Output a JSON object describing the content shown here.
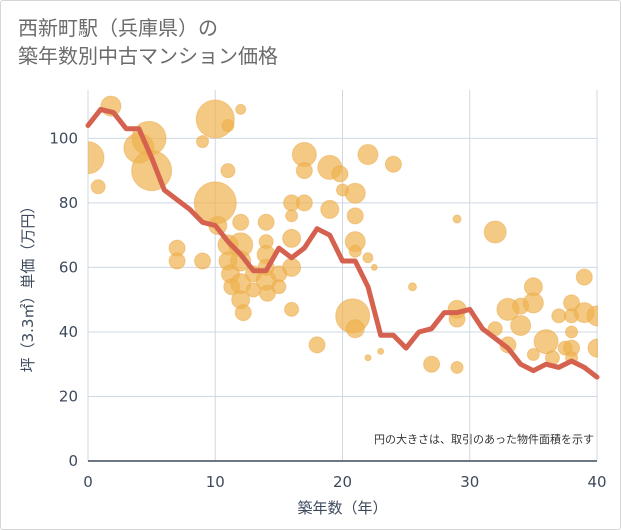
{
  "title_line1": "西新町駅（兵庫県）の",
  "title_line2": "築年数別中古マンション価格",
  "chart_data": {
    "type": "scatter",
    "title": "西新町駅（兵庫県）の築年数別中古マンション価格",
    "xlabel": "築年数（年）",
    "ylabel": "坪（3.3㎡）単価（万円）",
    "xlim": [
      0,
      40
    ],
    "ylim": [
      0,
      115
    ],
    "x_ticks": [
      0,
      10,
      20,
      30,
      40
    ],
    "y_ticks": [
      0,
      20,
      40,
      60,
      80,
      100
    ],
    "grid": true,
    "annotation": "円の大きさは、取引のあった物件面積を示す",
    "colors": {
      "bubble": "#f0b24e",
      "line": "#d5624f",
      "grid": "#cfd8e3",
      "axis": "#3d4a5c"
    },
    "series": [
      {
        "type": "bubble",
        "points": [
          [
            0,
            94,
            16
          ],
          [
            0.8,
            85,
            7
          ],
          [
            1.8,
            110,
            10
          ],
          [
            4,
            97,
            15
          ],
          [
            4.8,
            100,
            17
          ],
          [
            5,
            90,
            20
          ],
          [
            7,
            66,
            8
          ],
          [
            7,
            62,
            8
          ],
          [
            9,
            99,
            6
          ],
          [
            9,
            62,
            8
          ],
          [
            10,
            106,
            19
          ],
          [
            10,
            80,
            21
          ],
          [
            10.2,
            73,
            9
          ],
          [
            11,
            104,
            6
          ],
          [
            11,
            90,
            7
          ],
          [
            11,
            67,
            10
          ],
          [
            11,
            62,
            9
          ],
          [
            11.2,
            58,
            9
          ],
          [
            11.3,
            54,
            8
          ],
          [
            12,
            109,
            5
          ],
          [
            12,
            74,
            8
          ],
          [
            12,
            67,
            12
          ],
          [
            12,
            62,
            10
          ],
          [
            12,
            55,
            10
          ],
          [
            12,
            50,
            9
          ],
          [
            12.2,
            46,
            8
          ],
          [
            13,
            58,
            8
          ],
          [
            13,
            53,
            7
          ],
          [
            14,
            74,
            8
          ],
          [
            14,
            68,
            7
          ],
          [
            14,
            64,
            9
          ],
          [
            14,
            60,
            8
          ],
          [
            14,
            56,
            10
          ],
          [
            14.1,
            52,
            8
          ],
          [
            15,
            58,
            8
          ],
          [
            15,
            54,
            7
          ],
          [
            16,
            80,
            8
          ],
          [
            16,
            76,
            6
          ],
          [
            16,
            69,
            9
          ],
          [
            16,
            60,
            9
          ],
          [
            16,
            47,
            7
          ],
          [
            17,
            95,
            12
          ],
          [
            17,
            90,
            8
          ],
          [
            17,
            80,
            8
          ],
          [
            18,
            36,
            8
          ],
          [
            19,
            91,
            12
          ],
          [
            19,
            78,
            9
          ],
          [
            19.8,
            89,
            8
          ],
          [
            20,
            84,
            6
          ],
          [
            20.8,
            45,
            17
          ],
          [
            21,
            83,
            10
          ],
          [
            21,
            76,
            8
          ],
          [
            21,
            68,
            10
          ],
          [
            21,
            65,
            6
          ],
          [
            21,
            41,
            9
          ],
          [
            22,
            95,
            10
          ],
          [
            22,
            63,
            5
          ],
          [
            22,
            32,
            3
          ],
          [
            22.5,
            60,
            3
          ],
          [
            23,
            34,
            3
          ],
          [
            24,
            92,
            8
          ],
          [
            25.5,
            54,
            4
          ],
          [
            27,
            30,
            8
          ],
          [
            29,
            75,
            4
          ],
          [
            29,
            47,
            9
          ],
          [
            29,
            44,
            8
          ],
          [
            29,
            29,
            6
          ],
          [
            32,
            71,
            11
          ],
          [
            32,
            41,
            7
          ],
          [
            33,
            47,
            11
          ],
          [
            33,
            36,
            8
          ],
          [
            34,
            42,
            10
          ],
          [
            34,
            48,
            8
          ],
          [
            35,
            54,
            9
          ],
          [
            35,
            49,
            10
          ],
          [
            35,
            33,
            6
          ],
          [
            36,
            37,
            12
          ],
          [
            36.5,
            32,
            7
          ],
          [
            37,
            45,
            7
          ],
          [
            37.5,
            35,
            7
          ],
          [
            38,
            49,
            8
          ],
          [
            38,
            45,
            7
          ],
          [
            38,
            40,
            6
          ],
          [
            38,
            35,
            8
          ],
          [
            38,
            32,
            6
          ],
          [
            39,
            57,
            8
          ],
          [
            39,
            46,
            10
          ],
          [
            40,
            45,
            10
          ],
          [
            40,
            35,
            9
          ]
        ]
      },
      {
        "type": "line",
        "points": [
          [
            0,
            104
          ],
          [
            1,
            109
          ],
          [
            2,
            108
          ],
          [
            3,
            103
          ],
          [
            4,
            103
          ],
          [
            5,
            94
          ],
          [
            6,
            84
          ],
          [
            7,
            81
          ],
          [
            8,
            78
          ],
          [
            9,
            74
          ],
          [
            10,
            73
          ],
          [
            11,
            68
          ],
          [
            12,
            64
          ],
          [
            13,
            59
          ],
          [
            14,
            59
          ],
          [
            15,
            66
          ],
          [
            16,
            63
          ],
          [
            17,
            66
          ],
          [
            18,
            72
          ],
          [
            19,
            70
          ],
          [
            20,
            62
          ],
          [
            21,
            62
          ],
          [
            22,
            54
          ],
          [
            23,
            39
          ],
          [
            24,
            39
          ],
          [
            25,
            35
          ],
          [
            26,
            40
          ],
          [
            27,
            41
          ],
          [
            28,
            46
          ],
          [
            29,
            46
          ],
          [
            30,
            47
          ],
          [
            31,
            41
          ],
          [
            32,
            38
          ],
          [
            33,
            35
          ],
          [
            34,
            30
          ],
          [
            35,
            28
          ],
          [
            36,
            30
          ],
          [
            37,
            29
          ],
          [
            38,
            31
          ],
          [
            39,
            29
          ],
          [
            40,
            26
          ]
        ]
      }
    ]
  }
}
